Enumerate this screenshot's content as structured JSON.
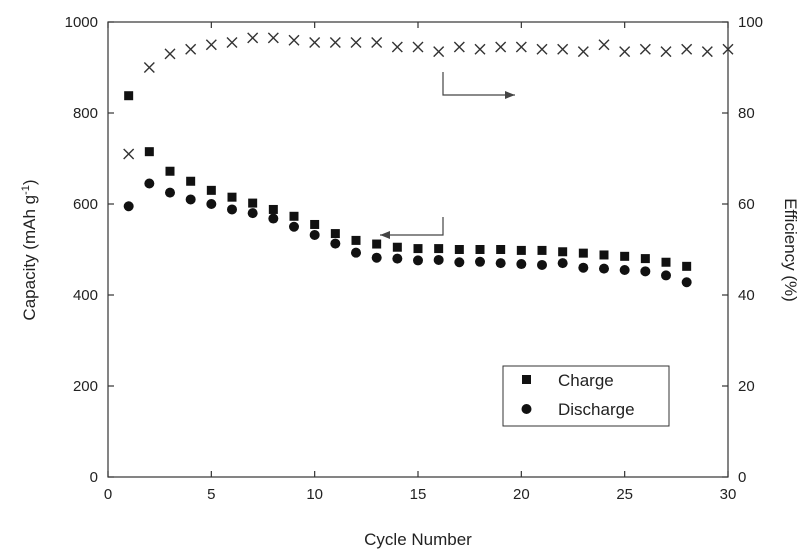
{
  "chart_data": {
    "type": "scatter",
    "xlabel": "Cycle Number",
    "ylabel_left": "Capacity (mAh g",
    "ylabel_left_sup": "-1",
    "ylabel_left_close": ")",
    "ylabel_right": "Efficiency (%)",
    "xlim": [
      0,
      30
    ],
    "ylim_left": [
      0,
      1000
    ],
    "ylim_right": [
      0,
      100
    ],
    "x_ticks": [
      "0",
      "5",
      "10",
      "15",
      "20",
      "25",
      "30"
    ],
    "y_left_ticks": [
      "0",
      "200",
      "400",
      "600",
      "800",
      "1000"
    ],
    "y_right_ticks": [
      "0",
      "20",
      "40",
      "60",
      "80",
      "100"
    ],
    "grid": false,
    "legend_position": "bottom-right",
    "series": [
      {
        "name": "Charge",
        "marker": "square",
        "axis": "left",
        "x": [
          1,
          2,
          3,
          4,
          5,
          6,
          7,
          8,
          9,
          10,
          11,
          12,
          13,
          14,
          15,
          16,
          17,
          18,
          19,
          20,
          21,
          22,
          23,
          24,
          25,
          26,
          27,
          28
        ],
        "y": [
          838,
          715,
          672,
          650,
          630,
          615,
          602,
          588,
          573,
          555,
          535,
          520,
          512,
          505,
          502,
          502,
          500,
          500,
          500,
          498,
          498,
          495,
          492,
          488,
          485,
          480,
          472,
          463
        ]
      },
      {
        "name": "Discharge",
        "marker": "circle",
        "axis": "left",
        "x": [
          1,
          2,
          3,
          4,
          5,
          6,
          7,
          8,
          9,
          10,
          11,
          12,
          13,
          14,
          15,
          16,
          17,
          18,
          19,
          20,
          21,
          22,
          23,
          24,
          25,
          26,
          27,
          28
        ],
        "y": [
          595,
          645,
          625,
          610,
          600,
          588,
          580,
          568,
          550,
          532,
          513,
          493,
          482,
          480,
          476,
          477,
          472,
          473,
          470,
          468,
          466,
          470,
          460,
          458,
          455,
          452,
          443,
          428
        ]
      },
      {
        "marker": "cross",
        "axis": "right",
        "x": [
          1,
          2,
          3,
          4,
          5,
          6,
          7,
          8,
          9,
          10,
          11,
          12,
          13,
          14,
          15,
          16,
          17,
          18,
          19,
          20,
          21,
          22,
          23,
          24,
          25,
          26,
          27,
          28,
          29,
          30
        ],
        "y": [
          71,
          90,
          93,
          94,
          95,
          95.5,
          96.5,
          96.5,
          96,
          95.5,
          95.5,
          95.5,
          95.5,
          94.5,
          94.5,
          93.5,
          94.5,
          94,
          94.5,
          94.5,
          94,
          94,
          93.5,
          95,
          93.5,
          94,
          93.5,
          94,
          93.5,
          94
        ]
      }
    ],
    "annotations": [
      {
        "type": "arrow",
        "points_to": "left axis",
        "near_series": "Charge/Discharge"
      },
      {
        "type": "arrow",
        "points_to": "right axis",
        "near_series": "Efficiency"
      }
    ]
  }
}
